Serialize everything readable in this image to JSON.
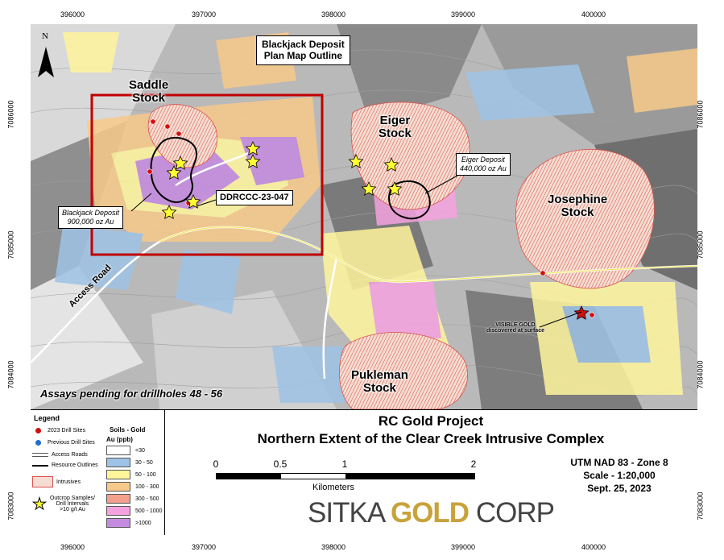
{
  "grid_ticks": {
    "easting": [
      "396000",
      "397000",
      "398000",
      "399000",
      "400000"
    ],
    "northing": [
      "7086000",
      "7085000",
      "7084000",
      "7083000"
    ]
  },
  "map": {
    "north_label": "N",
    "callout_plan_map": "Blackjack Deposit\nPlan Map Outline",
    "stocks": [
      "Saddle\nStock",
      "Eiger\nStock",
      "Josephine\nStock",
      "Pukleman\nStock"
    ],
    "blackjack_deposit": "Blackjack Deposit\n900,000 oz Au",
    "eiger_deposit": "Eiger Deposit\n440,000 oz Au",
    "drillhole_label": "DDRCCC-23-047",
    "access_road": "Access Road",
    "visible_gold": "VISIBLE GOLD\ndiscovered at surface",
    "assays_note": "Assays pending for drillholes 48 - 56"
  },
  "legend": {
    "title": "Legend",
    "items": {
      "drill_2023": "2023 Drill Sites",
      "drill_previous": "Previous Drill Sites",
      "access_roads": "Access Roads",
      "resource_outlines": "Resource Outlines",
      "intrusives": "Intrusives",
      "outcrop": "Outcrop Samples/\nDrill Intervals\n>10 g/t Au"
    },
    "soils_title": "Soils - Gold",
    "soils_unit": "Au (ppb)",
    "soils_classes": [
      {
        "label": "<30",
        "color": "#ffffff"
      },
      {
        "label": "30 - 50",
        "color": "#9ec3e6"
      },
      {
        "label": "50 - 100",
        "color": "#fff59d"
      },
      {
        "label": "100 - 300",
        "color": "#f7c98a"
      },
      {
        "label": "300 - 500",
        "color": "#f3a08c"
      },
      {
        "label": "500 - 1000",
        "color": "#f5a3e0"
      },
      {
        "label": ">1000",
        "color": "#c58be0"
      }
    ]
  },
  "title": {
    "line1": "RC Gold Project",
    "line2": "Northern Extent of the Clear Creek Intrusive Complex"
  },
  "scale_bar": {
    "ticks": [
      "0",
      "0.5",
      "1",
      "2"
    ],
    "unit": "Kilometers"
  },
  "projection": {
    "line1": "UTM NAD 83 - Zone 8",
    "line2": "Scale - 1:20,000",
    "line3": "Sept. 25, 2023"
  },
  "logo": {
    "part1": "SITKA ",
    "part2": "GOLD",
    "part3": " CORP"
  },
  "colors": {
    "plan_outline": "#c00000",
    "drill_2023": "#d01010",
    "drill_previous": "#1f6fd0",
    "star": "#ffff33",
    "gold": "#c8a23a"
  }
}
